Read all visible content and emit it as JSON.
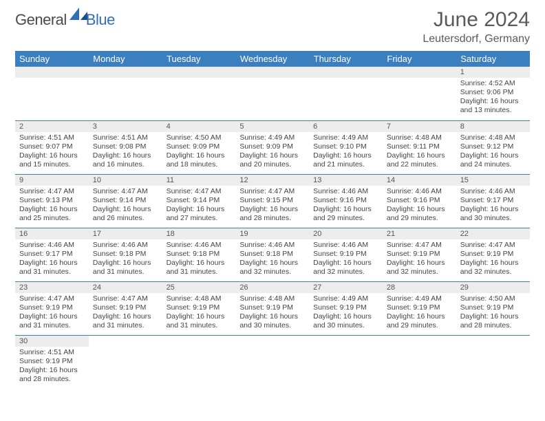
{
  "logo": {
    "text1": "General",
    "text2": "Blue"
  },
  "title": "June 2024",
  "location": "Leutersdorf, Germany",
  "colors": {
    "header_bg": "#3b7fbf",
    "header_text": "#ffffff",
    "stripe_bg": "#ededed",
    "border": "#3b7fbf",
    "body_text": "#444444",
    "title_text": "#5a5a5a",
    "logo_gray": "#4a4a4a",
    "logo_blue": "#2f6fb3"
  },
  "day_headers": [
    "Sunday",
    "Monday",
    "Tuesday",
    "Wednesday",
    "Thursday",
    "Friday",
    "Saturday"
  ],
  "weeks": [
    [
      null,
      null,
      null,
      null,
      null,
      null,
      {
        "n": "1",
        "sr": "Sunrise: 4:52 AM",
        "ss": "Sunset: 9:06 PM",
        "d1": "Daylight: 16 hours",
        "d2": "and 13 minutes."
      }
    ],
    [
      {
        "n": "2",
        "sr": "Sunrise: 4:51 AM",
        "ss": "Sunset: 9:07 PM",
        "d1": "Daylight: 16 hours",
        "d2": "and 15 minutes."
      },
      {
        "n": "3",
        "sr": "Sunrise: 4:51 AM",
        "ss": "Sunset: 9:08 PM",
        "d1": "Daylight: 16 hours",
        "d2": "and 16 minutes."
      },
      {
        "n": "4",
        "sr": "Sunrise: 4:50 AM",
        "ss": "Sunset: 9:09 PM",
        "d1": "Daylight: 16 hours",
        "d2": "and 18 minutes."
      },
      {
        "n": "5",
        "sr": "Sunrise: 4:49 AM",
        "ss": "Sunset: 9:09 PM",
        "d1": "Daylight: 16 hours",
        "d2": "and 20 minutes."
      },
      {
        "n": "6",
        "sr": "Sunrise: 4:49 AM",
        "ss": "Sunset: 9:10 PM",
        "d1": "Daylight: 16 hours",
        "d2": "and 21 minutes."
      },
      {
        "n": "7",
        "sr": "Sunrise: 4:48 AM",
        "ss": "Sunset: 9:11 PM",
        "d1": "Daylight: 16 hours",
        "d2": "and 22 minutes."
      },
      {
        "n": "8",
        "sr": "Sunrise: 4:48 AM",
        "ss": "Sunset: 9:12 PM",
        "d1": "Daylight: 16 hours",
        "d2": "and 24 minutes."
      }
    ],
    [
      {
        "n": "9",
        "sr": "Sunrise: 4:47 AM",
        "ss": "Sunset: 9:13 PM",
        "d1": "Daylight: 16 hours",
        "d2": "and 25 minutes."
      },
      {
        "n": "10",
        "sr": "Sunrise: 4:47 AM",
        "ss": "Sunset: 9:14 PM",
        "d1": "Daylight: 16 hours",
        "d2": "and 26 minutes."
      },
      {
        "n": "11",
        "sr": "Sunrise: 4:47 AM",
        "ss": "Sunset: 9:14 PM",
        "d1": "Daylight: 16 hours",
        "d2": "and 27 minutes."
      },
      {
        "n": "12",
        "sr": "Sunrise: 4:47 AM",
        "ss": "Sunset: 9:15 PM",
        "d1": "Daylight: 16 hours",
        "d2": "and 28 minutes."
      },
      {
        "n": "13",
        "sr": "Sunrise: 4:46 AM",
        "ss": "Sunset: 9:16 PM",
        "d1": "Daylight: 16 hours",
        "d2": "and 29 minutes."
      },
      {
        "n": "14",
        "sr": "Sunrise: 4:46 AM",
        "ss": "Sunset: 9:16 PM",
        "d1": "Daylight: 16 hours",
        "d2": "and 29 minutes."
      },
      {
        "n": "15",
        "sr": "Sunrise: 4:46 AM",
        "ss": "Sunset: 9:17 PM",
        "d1": "Daylight: 16 hours",
        "d2": "and 30 minutes."
      }
    ],
    [
      {
        "n": "16",
        "sr": "Sunrise: 4:46 AM",
        "ss": "Sunset: 9:17 PM",
        "d1": "Daylight: 16 hours",
        "d2": "and 31 minutes."
      },
      {
        "n": "17",
        "sr": "Sunrise: 4:46 AM",
        "ss": "Sunset: 9:18 PM",
        "d1": "Daylight: 16 hours",
        "d2": "and 31 minutes."
      },
      {
        "n": "18",
        "sr": "Sunrise: 4:46 AM",
        "ss": "Sunset: 9:18 PM",
        "d1": "Daylight: 16 hours",
        "d2": "and 31 minutes."
      },
      {
        "n": "19",
        "sr": "Sunrise: 4:46 AM",
        "ss": "Sunset: 9:18 PM",
        "d1": "Daylight: 16 hours",
        "d2": "and 32 minutes."
      },
      {
        "n": "20",
        "sr": "Sunrise: 4:46 AM",
        "ss": "Sunset: 9:19 PM",
        "d1": "Daylight: 16 hours",
        "d2": "and 32 minutes."
      },
      {
        "n": "21",
        "sr": "Sunrise: 4:47 AM",
        "ss": "Sunset: 9:19 PM",
        "d1": "Daylight: 16 hours",
        "d2": "and 32 minutes."
      },
      {
        "n": "22",
        "sr": "Sunrise: 4:47 AM",
        "ss": "Sunset: 9:19 PM",
        "d1": "Daylight: 16 hours",
        "d2": "and 32 minutes."
      }
    ],
    [
      {
        "n": "23",
        "sr": "Sunrise: 4:47 AM",
        "ss": "Sunset: 9:19 PM",
        "d1": "Daylight: 16 hours",
        "d2": "and 31 minutes."
      },
      {
        "n": "24",
        "sr": "Sunrise: 4:47 AM",
        "ss": "Sunset: 9:19 PM",
        "d1": "Daylight: 16 hours",
        "d2": "and 31 minutes."
      },
      {
        "n": "25",
        "sr": "Sunrise: 4:48 AM",
        "ss": "Sunset: 9:19 PM",
        "d1": "Daylight: 16 hours",
        "d2": "and 31 minutes."
      },
      {
        "n": "26",
        "sr": "Sunrise: 4:48 AM",
        "ss": "Sunset: 9:19 PM",
        "d1": "Daylight: 16 hours",
        "d2": "and 30 minutes."
      },
      {
        "n": "27",
        "sr": "Sunrise: 4:49 AM",
        "ss": "Sunset: 9:19 PM",
        "d1": "Daylight: 16 hours",
        "d2": "and 30 minutes."
      },
      {
        "n": "28",
        "sr": "Sunrise: 4:49 AM",
        "ss": "Sunset: 9:19 PM",
        "d1": "Daylight: 16 hours",
        "d2": "and 29 minutes."
      },
      {
        "n": "29",
        "sr": "Sunrise: 4:50 AM",
        "ss": "Sunset: 9:19 PM",
        "d1": "Daylight: 16 hours",
        "d2": "and 28 minutes."
      }
    ],
    [
      {
        "n": "30",
        "sr": "Sunrise: 4:51 AM",
        "ss": "Sunset: 9:19 PM",
        "d1": "Daylight: 16 hours",
        "d2": "and 28 minutes."
      },
      null,
      null,
      null,
      null,
      null,
      null
    ]
  ]
}
